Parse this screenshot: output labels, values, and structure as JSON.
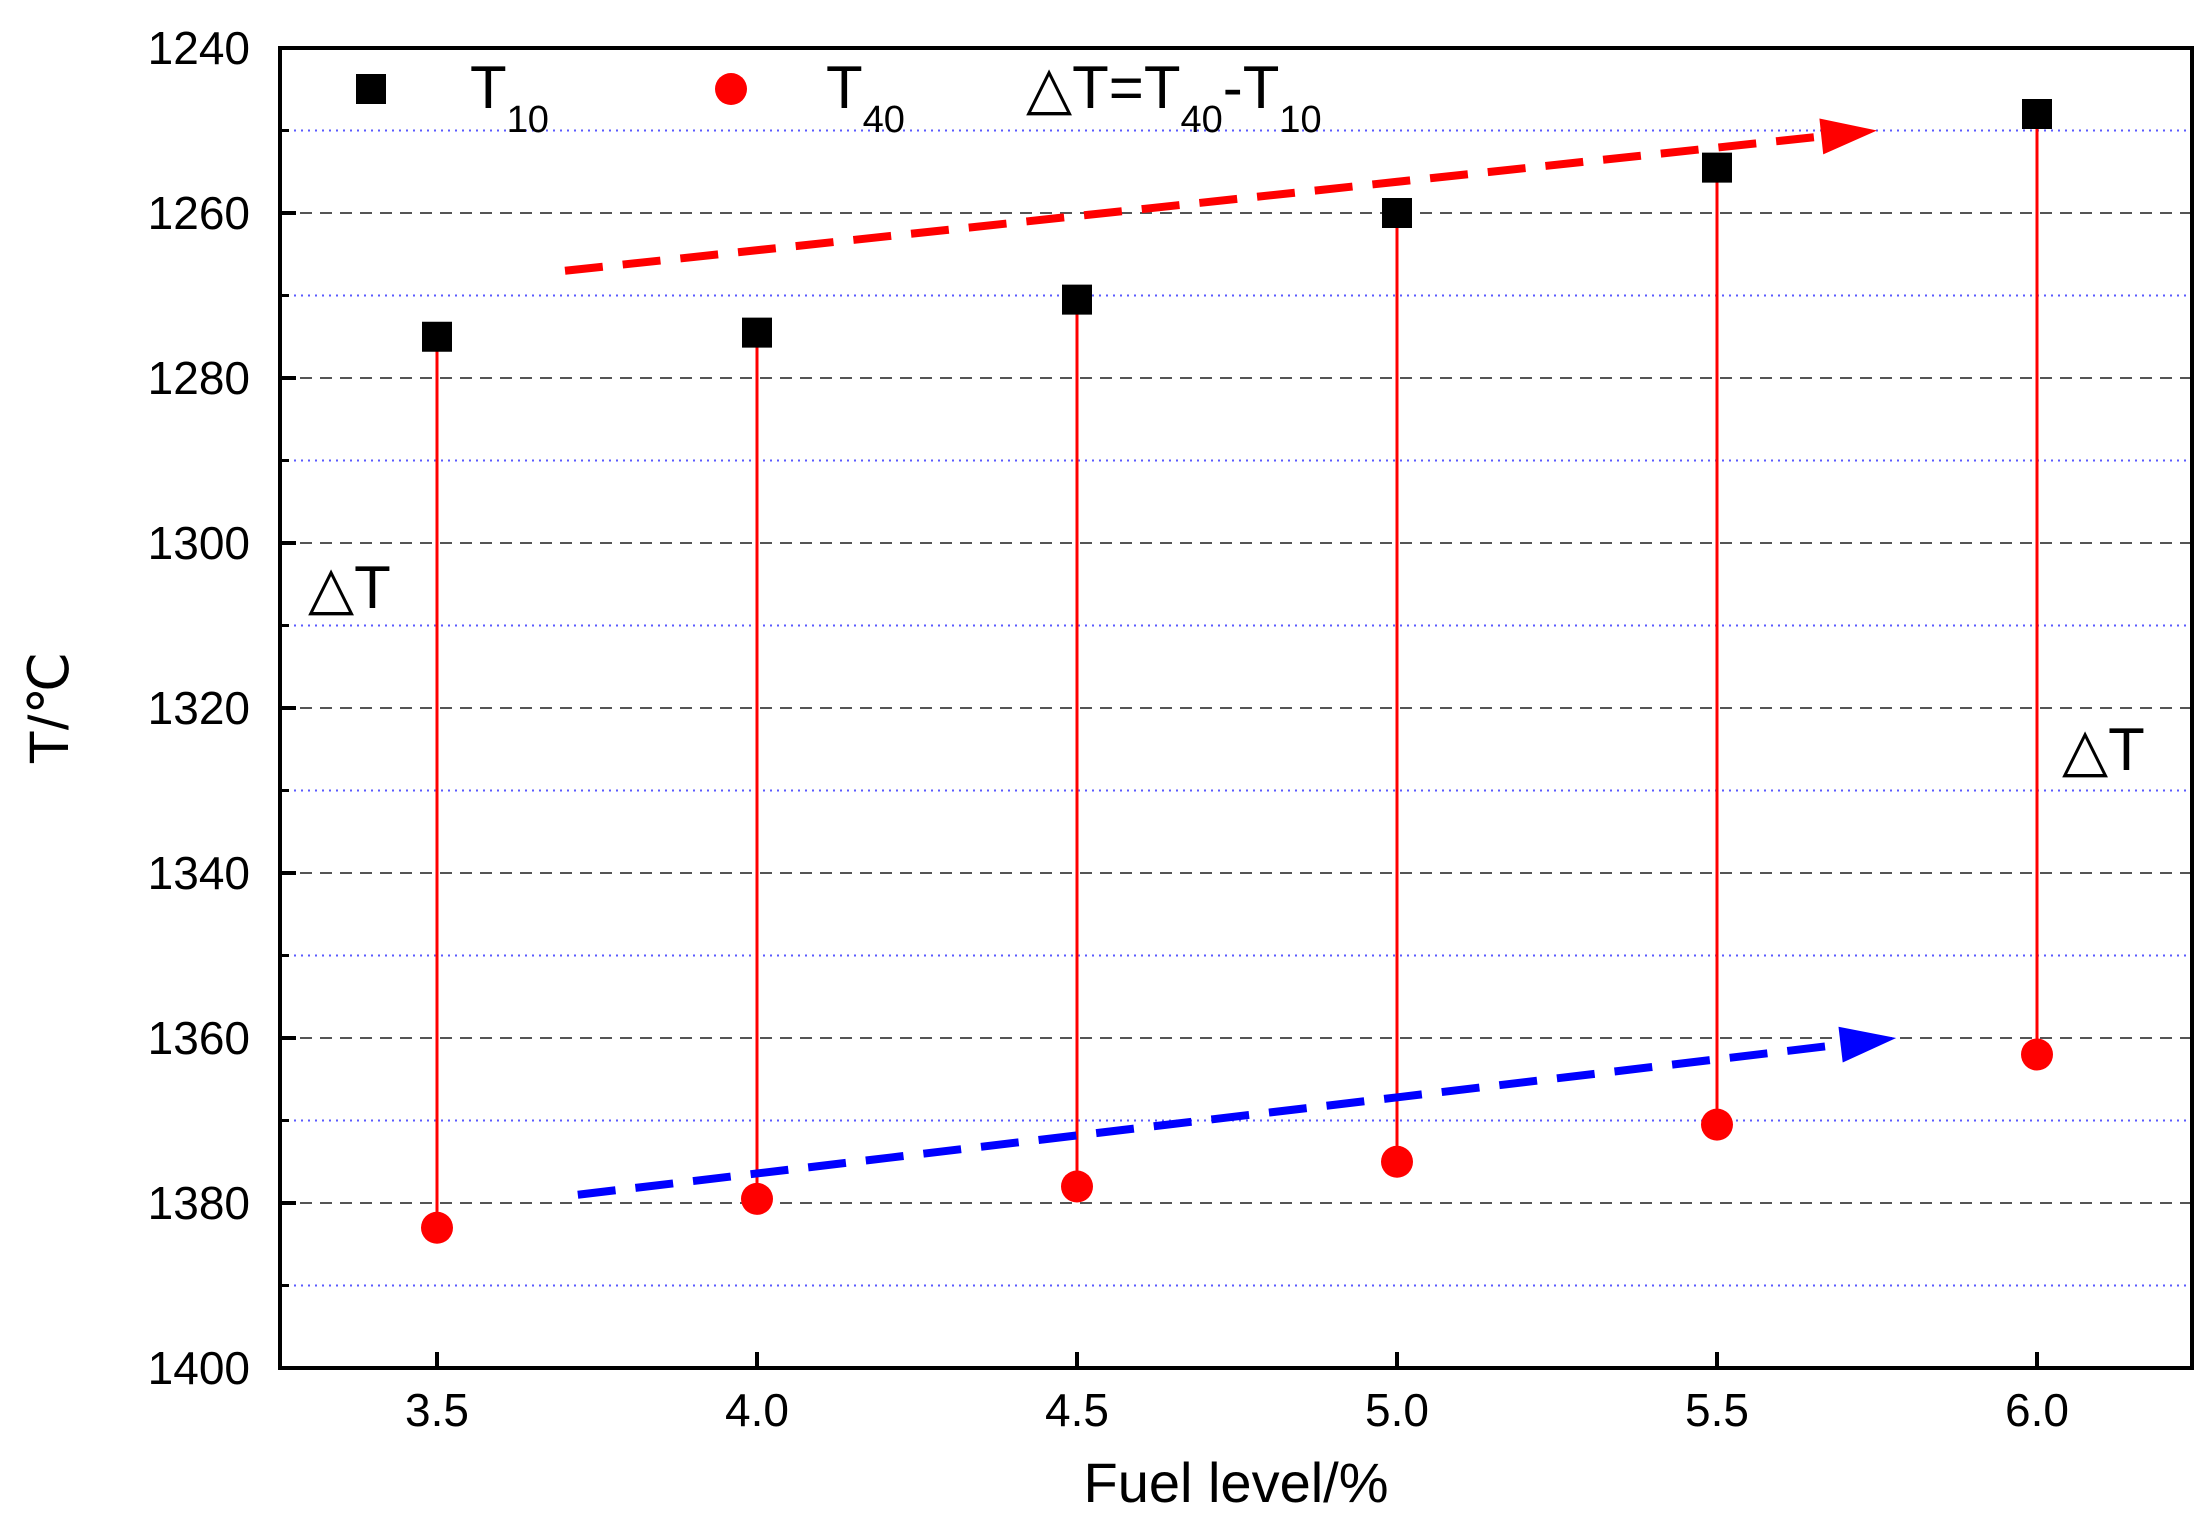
{
  "chart_data": {
    "type": "scatter",
    "xlabel": "Fuel level/%",
    "ylabel": "T/℃",
    "xlim": [
      3.25,
      6.25
    ],
    "ylim": [
      1400,
      1240
    ],
    "y_inverted": true,
    "x_ticks": [
      "3.5",
      "4.0",
      "4.5",
      "5.0",
      "5.5",
      "6.0"
    ],
    "y_ticks": [
      "1240",
      "1260",
      "1280",
      "1300",
      "1320",
      "1340",
      "1360",
      "1380",
      "1400"
    ],
    "grid": "horizontal major dashed (gray) and minor dotted (blue)",
    "legend_position": "top",
    "x": [
      3.5,
      4.0,
      4.5,
      5.0,
      5.5,
      6.0
    ],
    "series": [
      {
        "name": "T10",
        "label_main": "T",
        "label_sub": "10",
        "marker": "square",
        "color": "#000000",
        "values": [
          1275,
          1274.5,
          1270.5,
          1260,
          1254.5,
          1248
        ]
      },
      {
        "name": "T40",
        "label_main": "T",
        "label_sub": "40",
        "marker": "circle",
        "color": "#ff0000",
        "values": [
          1383,
          1379.5,
          1378,
          1375,
          1370.5,
          1362
        ]
      }
    ],
    "legend_formula": {
      "p1": "△T=T",
      "s1": "40",
      "p2": "-T",
      "s2": "10"
    },
    "annotations": [
      {
        "text": "△T",
        "position": "left, near y=1305"
      },
      {
        "text": "△T",
        "position": "right, near y=1324"
      }
    ],
    "trend_arrows": [
      {
        "name": "T10 trend",
        "color": "#ff0000",
        "from": [
          3.7,
          1267
        ],
        "to": [
          5.75,
          1250
        ]
      },
      {
        "name": "T40 trend",
        "color": "#0000ff",
        "from": [
          3.72,
          1379
        ],
        "to": [
          5.78,
          1360
        ]
      }
    ]
  }
}
